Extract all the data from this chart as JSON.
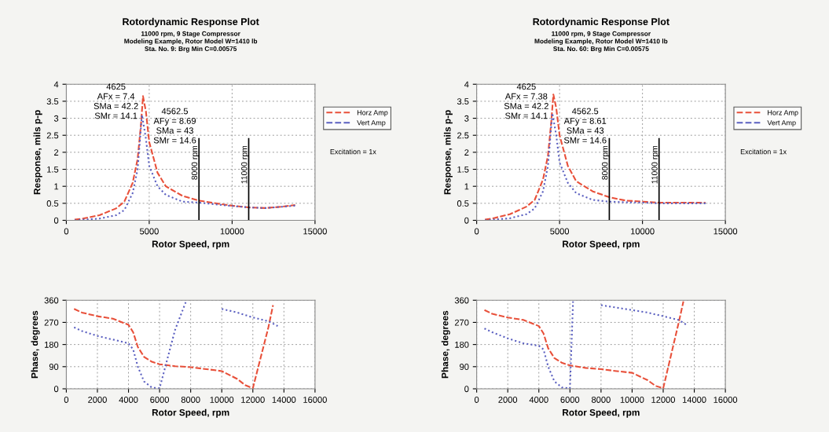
{
  "chart_data": [
    {
      "type": "line",
      "title": "Rotordynamic Response Plot",
      "subtitle": "11000 rpm, 9 Stage Compressor\nModeling Example, Rotor Model W=1410 lb\nSta. No. 9: Brg Min C=0.00575",
      "xlabel": "Rotor Speed, rpm",
      "ylabel": "Response, mils p-p",
      "xlim": [
        0,
        15000
      ],
      "xticks": [
        0,
        5000,
        10000,
        15000
      ],
      "ylim": [
        0,
        4
      ],
      "yticks": [
        0,
        0.5,
        1,
        1.5,
        2,
        2.5,
        3,
        3.5,
        4
      ],
      "grid": true,
      "legend": "right",
      "series": [
        {
          "name": "Horz Amp",
          "color": "#e8503a",
          "line_style": "dashed",
          "x": [
            500,
            1000,
            2000,
            3000,
            3500,
            4000,
            4300,
            4500,
            4625,
            4800,
            5000,
            5500,
            6000,
            7000,
            8000,
            9000,
            10000,
            11000,
            12000,
            13000,
            13800
          ],
          "values": [
            0.02,
            0.05,
            0.15,
            0.35,
            0.55,
            1.1,
            1.8,
            2.8,
            3.65,
            3.2,
            2.3,
            1.4,
            1.0,
            0.72,
            0.58,
            0.5,
            0.43,
            0.38,
            0.36,
            0.4,
            0.45
          ]
        },
        {
          "name": "Vert Amp",
          "color": "#5a5fc0",
          "line_style": "dotted",
          "x": [
            500,
            1000,
            2000,
            3000,
            3500,
            4000,
            4300,
            4562.5,
            4800,
            5000,
            5500,
            6000,
            7000,
            8000,
            9000,
            10000,
            11000,
            12000,
            13000,
            13800
          ],
          "values": [
            0.0,
            0.02,
            0.05,
            0.15,
            0.3,
            0.8,
            1.5,
            3.1,
            2.4,
            1.6,
            1.0,
            0.75,
            0.55,
            0.52,
            0.47,
            0.42,
            0.38,
            0.36,
            0.4,
            0.43
          ]
        }
      ],
      "ref_lines": [
        {
          "axis": "x",
          "value": 8000,
          "label": "8000 rpm",
          "color": "#000000"
        },
        {
          "axis": "x",
          "value": 11000,
          "label": "11000 rpm",
          "color": "#000000"
        }
      ],
      "annotations": [
        "4625\nAFx = 7.4\nSMa = 42.2\nSMr = 14.1",
        "4562.5\nAFy = 8.69\nSMa = 43\nSMr = 14.6",
        "Excitation = 1x"
      ]
    },
    {
      "type": "line",
      "title": "Rotordynamic Response Plot",
      "subtitle": "11000 rpm, 9 Stage Compressor\nModeling Example, Rotor Model W=1410 lb\nSta. No. 60: Brg Min C=0.00575",
      "xlabel": "Rotor Speed, rpm",
      "ylabel": "Response, mils p-p",
      "xlim": [
        0,
        15000
      ],
      "xticks": [
        0,
        5000,
        10000,
        15000
      ],
      "ylim": [
        0,
        4
      ],
      "yticks": [
        0,
        0.5,
        1,
        1.5,
        2,
        2.5,
        3,
        3.5,
        4
      ],
      "grid": true,
      "legend": "right",
      "series": [
        {
          "name": "Horz Amp",
          "color": "#e8503a",
          "line_style": "dashed",
          "x": [
            500,
            1000,
            2000,
            3000,
            3500,
            4000,
            4300,
            4500,
            4625,
            4800,
            5000,
            5500,
            6000,
            7000,
            8000,
            9000,
            10000,
            11000,
            12000,
            13000,
            13800
          ],
          "values": [
            0.02,
            0.06,
            0.18,
            0.4,
            0.6,
            1.2,
            1.9,
            2.9,
            3.7,
            3.3,
            2.5,
            1.6,
            1.15,
            0.85,
            0.68,
            0.58,
            0.55,
            0.52,
            0.52,
            0.52,
            0.52
          ]
        },
        {
          "name": "Vert Amp",
          "color": "#5a5fc0",
          "line_style": "dotted",
          "x": [
            500,
            1000,
            2000,
            3000,
            3500,
            4000,
            4300,
            4562.5,
            4800,
            5000,
            5500,
            6000,
            7000,
            8000,
            9000,
            10000,
            11000,
            12000,
            13000,
            13800
          ],
          "values": [
            0.0,
            0.02,
            0.06,
            0.18,
            0.35,
            0.85,
            1.6,
            3.15,
            2.5,
            1.7,
            1.1,
            0.8,
            0.6,
            0.55,
            0.53,
            0.52,
            0.5,
            0.5,
            0.5,
            0.5
          ]
        }
      ],
      "ref_lines": [
        {
          "axis": "x",
          "value": 8000,
          "label": "8000 rpm",
          "color": "#000000"
        },
        {
          "axis": "x",
          "value": 11000,
          "label": "11000 rpm",
          "color": "#000000"
        }
      ],
      "annotations": [
        "4625\nAFx = 7.38\nSMa = 42.2\nSMr = 14.1",
        "4562.5\nAFy = 8.61\nSMa = 43\nSMr = 14.6",
        "Excitation = 1x"
      ]
    },
    {
      "type": "line",
      "xlabel": "Rotor Speed, rpm",
      "ylabel": "Phase, degrees",
      "xlim": [
        0,
        16000
      ],
      "xticks": [
        0,
        2000,
        4000,
        6000,
        8000,
        10000,
        12000,
        14000,
        16000
      ],
      "ylim": [
        0,
        360
      ],
      "yticks": [
        0,
        90,
        180,
        270,
        360
      ],
      "grid": true,
      "series": [
        {
          "color": "#e8503a",
          "line_style": "dashed",
          "x": [
            500,
            1000,
            2000,
            3000,
            4000,
            4300,
            4600,
            5000,
            5500,
            6000,
            7000,
            8000,
            9000,
            10000,
            11000,
            11500,
            12000,
            13000,
            13300
          ],
          "values": [
            325,
            310,
            295,
            285,
            260,
            230,
            170,
            130,
            110,
            100,
            92,
            88,
            80,
            72,
            40,
            15,
            2,
            250,
            340
          ]
        },
        {
          "color": "#5a5fc0",
          "line_style": "dotted",
          "x": [
            500,
            1000,
            2000,
            3000,
            4000,
            4300,
            4600,
            5000,
            5500,
            6000,
            7000,
            7700,
            8800,
            10000,
            11000,
            12000,
            13000,
            13600
          ],
          "values": [
            250,
            235,
            215,
            200,
            185,
            160,
            90,
            30,
            5,
            2,
            240,
            355,
            null,
            325,
            310,
            290,
            275,
            255
          ]
        }
      ]
    },
    {
      "type": "line",
      "xlabel": "Rotor Speed, rpm",
      "ylabel": "Phase, degrees",
      "xlim": [
        0,
        16000
      ],
      "xticks": [
        0,
        2000,
        4000,
        6000,
        8000,
        10000,
        12000,
        14000,
        16000
      ],
      "ylim": [
        0,
        360
      ],
      "yticks": [
        0,
        90,
        180,
        270,
        360
      ],
      "grid": true,
      "series": [
        {
          "color": "#e8503a",
          "line_style": "dashed",
          "x": [
            500,
            1000,
            2000,
            3000,
            4000,
            4300,
            4600,
            5000,
            5500,
            6000,
            7000,
            8000,
            9000,
            10000,
            11000,
            11500,
            12000,
            13000,
            13300
          ],
          "values": [
            320,
            305,
            290,
            280,
            255,
            225,
            165,
            125,
            105,
            95,
            85,
            80,
            72,
            65,
            35,
            12,
            2,
            270,
            355
          ]
        },
        {
          "color": "#5a5fc0",
          "line_style": "dotted",
          "x": [
            500,
            1000,
            2000,
            3000,
            4000,
            4300,
            4600,
            5000,
            5500,
            6000,
            6200,
            7500,
            8000,
            10000,
            11000,
            12000,
            13000,
            13500
          ],
          "values": [
            245,
            230,
            205,
            185,
            175,
            160,
            90,
            30,
            5,
            2,
            355,
            null,
            340,
            320,
            310,
            295,
            280,
            260
          ]
        }
      ]
    }
  ]
}
